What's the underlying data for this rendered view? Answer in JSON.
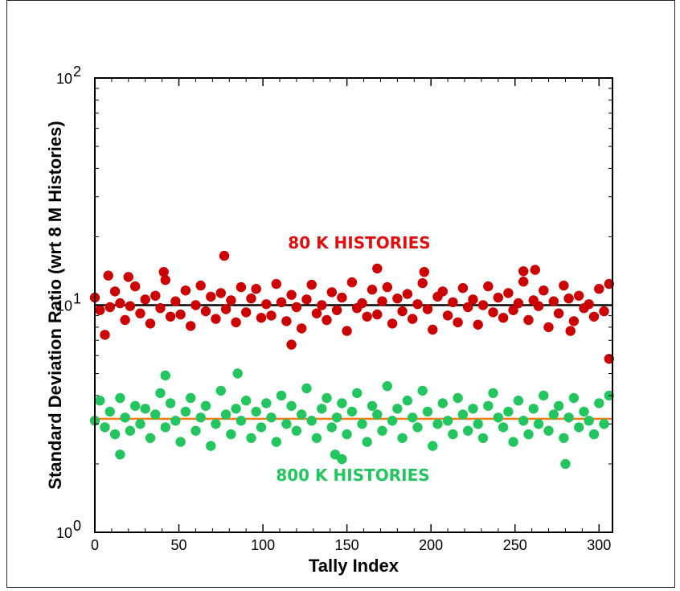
{
  "chart_data": {
    "type": "scatter",
    "xlabel": "Tally Index",
    "ylabel": "Standard Deviation Ratio (wrt 8 M Histories)",
    "xlim": [
      0,
      308
    ],
    "ylim": [
      1,
      100
    ],
    "y_scale": "log",
    "x_ticks": [
      "0",
      "50",
      "100",
      "150",
      "200",
      "250",
      "300"
    ],
    "y_ticks": [
      {
        "base": "10",
        "exp": "0"
      },
      {
        "base": "10",
        "exp": "1"
      },
      {
        "base": "10",
        "exp": "2"
      }
    ],
    "grid": false,
    "annotations": [
      {
        "text": "80 K HISTORIES",
        "color": "#e01010"
      },
      {
        "text": "800 K HISTORIES",
        "color": "#22c55e"
      }
    ],
    "reference_lines": [
      {
        "y": 10,
        "color": "#000000"
      },
      {
        "y": 3.16,
        "color": "#f07f1a"
      }
    ],
    "series": [
      {
        "color": "#cc0000",
        "x": [
          0,
          3,
          6,
          9,
          12,
          15,
          18,
          21,
          24,
          27,
          30,
          33,
          36,
          39,
          42,
          45,
          48,
          51,
          54,
          57,
          60,
          63,
          66,
          69,
          72,
          75,
          78,
          81,
          84,
          87,
          90,
          93,
          96,
          99,
          102,
          105,
          108,
          111,
          114,
          117,
          120,
          123,
          126,
          129,
          132,
          135,
          138,
          141,
          144,
          147,
          150,
          153,
          156,
          159,
          162,
          165,
          168,
          171,
          174,
          177,
          180,
          183,
          186,
          189,
          192,
          195,
          198,
          201,
          204,
          207,
          210,
          213,
          216,
          219,
          222,
          225,
          228,
          231,
          234,
          237,
          240,
          243,
          246,
          249,
          252,
          255,
          258,
          261,
          264,
          267,
          270,
          273,
          276,
          279,
          282,
          285,
          288,
          291,
          294,
          297,
          300,
          303,
          306,
          8,
          20,
          41,
          77,
          117,
          168,
          196,
          255,
          262,
          283,
          306
        ],
        "values": [
          10.8,
          9.5,
          7.4,
          9.8,
          11.5,
          10.2,
          8.6,
          9.9,
          12.1,
          9.2,
          10.6,
          8.3,
          11.0,
          9.7,
          12.9,
          8.9,
          10.4,
          9.1,
          11.6,
          8.1,
          10.0,
          12.2,
          9.4,
          10.9,
          8.7,
          11.3,
          9.6,
          10.5,
          8.4,
          12.0,
          9.3,
          10.7,
          11.8,
          8.8,
          10.1,
          9.0,
          12.4,
          10.3,
          8.5,
          11.1,
          9.8,
          7.9,
          10.6,
          12.3,
          9.2,
          10.0,
          8.6,
          11.4,
          9.5,
          10.8,
          7.7,
          12.6,
          9.7,
          10.2,
          8.9,
          11.7,
          9.1,
          10.4,
          12.0,
          8.3,
          10.7,
          9.4,
          11.2,
          8.7,
          10.1,
          12.5,
          9.6,
          7.8,
          10.9,
          11.5,
          9.0,
          10.3,
          8.4,
          11.9,
          9.8,
          10.6,
          8.2,
          10.0,
          12.1,
          9.3,
          10.8,
          8.8,
          11.3,
          9.5,
          10.2,
          12.7,
          8.6,
          10.5,
          9.9,
          11.6,
          8.0,
          10.4,
          9.2,
          12.2,
          10.7,
          8.5,
          11.0,
          9.7,
          10.1,
          8.9,
          11.8,
          9.4,
          12.4,
          13.5,
          13.3,
          14.0,
          16.5,
          6.7,
          14.5,
          14.0,
          14.1,
          14.3,
          7.7,
          5.8
        ]
      },
      {
        "color": "#22c55e",
        "x": [
          0,
          3,
          6,
          9,
          12,
          15,
          18,
          21,
          24,
          27,
          30,
          33,
          36,
          39,
          42,
          45,
          48,
          51,
          54,
          57,
          60,
          63,
          66,
          69,
          72,
          75,
          78,
          81,
          84,
          87,
          90,
          93,
          96,
          99,
          102,
          105,
          108,
          111,
          114,
          117,
          120,
          123,
          126,
          129,
          132,
          135,
          138,
          141,
          144,
          147,
          150,
          153,
          156,
          159,
          162,
          165,
          168,
          171,
          174,
          177,
          180,
          183,
          186,
          189,
          192,
          195,
          198,
          201,
          204,
          207,
          210,
          213,
          216,
          219,
          222,
          225,
          228,
          231,
          234,
          237,
          240,
          243,
          246,
          249,
          252,
          255,
          258,
          261,
          264,
          267,
          270,
          273,
          276,
          279,
          282,
          285,
          288,
          291,
          294,
          297,
          300,
          303,
          306,
          15,
          42,
          85,
          143,
          147,
          280
        ],
        "values": [
          3.1,
          3.8,
          2.9,
          3.4,
          2.7,
          3.9,
          3.2,
          2.8,
          3.6,
          3.0,
          3.5,
          2.6,
          3.3,
          4.1,
          2.9,
          3.7,
          3.1,
          2.5,
          3.4,
          3.9,
          2.8,
          3.2,
          3.6,
          2.4,
          3.0,
          4.2,
          3.3,
          2.7,
          3.5,
          3.1,
          3.8,
          2.6,
          3.4,
          2.9,
          3.7,
          3.2,
          2.5,
          4.0,
          3.0,
          3.6,
          2.8,
          3.3,
          4.3,
          3.1,
          2.6,
          3.5,
          3.9,
          2.9,
          3.2,
          3.7,
          2.7,
          3.4,
          4.1,
          3.0,
          2.5,
          3.6,
          3.3,
          2.8,
          4.4,
          3.1,
          3.5,
          2.6,
          3.8,
          3.2,
          2.9,
          4.2,
          3.4,
          2.4,
          3.0,
          3.7,
          3.1,
          2.7,
          3.9,
          3.3,
          2.8,
          3.5,
          3.0,
          2.6,
          3.6,
          4.1,
          3.2,
          2.9,
          3.4,
          2.5,
          3.8,
          3.1,
          2.7,
          3.5,
          3.0,
          4.0,
          2.8,
          3.3,
          3.6,
          2.6,
          3.2,
          3.9,
          2.9,
          3.4,
          3.1,
          2.7,
          3.7,
          3.0,
          4.0,
          2.2,
          4.9,
          5.0,
          2.2,
          2.1,
          2.0
        ]
      }
    ]
  }
}
